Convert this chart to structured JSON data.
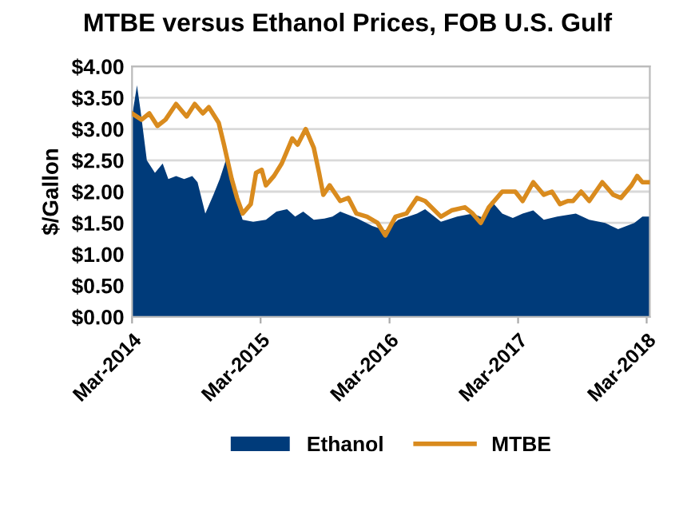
{
  "chart_data": {
    "type": "area",
    "title": "MTBE versus Ethanol Prices, FOB U.S. Gulf",
    "ylabel": "$/Gallon",
    "xlim": [
      "2014-03-01",
      "2018-03-10"
    ],
    "xticks": [
      {
        "value": "2014-03-01",
        "label": "Mar-2014"
      },
      {
        "value": "2015-03-01",
        "label": "Mar-2015"
      },
      {
        "value": "2016-03-01",
        "label": "Mar-2016"
      },
      {
        "value": "2017-03-01",
        "label": "Mar-2017"
      },
      {
        "value": "2018-03-01",
        "label": "Mar-2018"
      }
    ],
    "ylim": [
      0,
      4
    ],
    "yticks": [
      {
        "value": 0,
        "label": "$0.00"
      },
      {
        "value": 0.5,
        "label": "$0.50"
      },
      {
        "value": 1,
        "label": "$1.00"
      },
      {
        "value": 1.5,
        "label": "$1.50"
      },
      {
        "value": 2,
        "label": "$2.00"
      },
      {
        "value": 2.5,
        "label": "$2.50"
      },
      {
        "value": 3,
        "label": "$3.00"
      },
      {
        "value": 3.5,
        "label": "$3.50"
      },
      {
        "value": 4,
        "label": "$4.00"
      }
    ],
    "grid": "y",
    "legend": "bottom",
    "marker": "none",
    "line_style": "solid",
    "series": [
      {
        "name": "Ethanol",
        "color": "#003b7a",
        "x": [
          "2014-03-01",
          "2014-03-15",
          "2014-03-25",
          "2014-04-12",
          "2014-05-05",
          "2014-05-27",
          "2014-06-12",
          "2014-07-04",
          "2014-07-27",
          "2014-08-19",
          "2014-09-03",
          "2014-09-25",
          "2014-10-18",
          "2014-11-05",
          "2014-11-25",
          "2014-12-17",
          "2015-01-09",
          "2015-02-08",
          "2015-03-16",
          "2015-04-15",
          "2015-05-15",
          "2015-06-07",
          "2015-06-30",
          "2015-07-30",
          "2015-08-29",
          "2015-09-21",
          "2015-10-13",
          "2015-11-28",
          "2016-01-12",
          "2016-02-18",
          "2016-03-26",
          "2016-05-18",
          "2016-06-10",
          "2016-07-25",
          "2016-09-09",
          "2016-10-23",
          "2016-11-23",
          "2016-12-15",
          "2017-01-15",
          "2017-02-14",
          "2017-03-14",
          "2017-04-13",
          "2017-05-13",
          "2017-06-20",
          "2017-08-12",
          "2017-09-19",
          "2017-11-03",
          "2017-12-10",
          "2018-01-25",
          "2018-02-17",
          "2018-03-10"
        ],
        "values": [
          3.2,
          3.7,
          3.3,
          2.5,
          2.3,
          2.45,
          2.2,
          2.25,
          2.2,
          2.25,
          2.15,
          1.65,
          1.95,
          2.2,
          2.55,
          1.95,
          1.55,
          1.52,
          1.55,
          1.68,
          1.72,
          1.6,
          1.68,
          1.55,
          1.57,
          1.6,
          1.68,
          1.58,
          1.45,
          1.38,
          1.55,
          1.65,
          1.72,
          1.52,
          1.6,
          1.65,
          1.58,
          1.85,
          1.65,
          1.58,
          1.65,
          1.7,
          1.55,
          1.6,
          1.65,
          1.55,
          1.5,
          1.4,
          1.5,
          1.6,
          1.6
        ]
      },
      {
        "name": "MTBE",
        "type": "line",
        "color": "#d98b1e",
        "x": [
          "2014-03-01",
          "2014-03-28",
          "2014-04-19",
          "2014-05-12",
          "2014-06-04",
          "2014-07-04",
          "2014-08-03",
          "2014-08-26",
          "2014-09-18",
          "2014-10-05",
          "2014-11-02",
          "2014-11-17",
          "2014-12-09",
          "2014-12-24",
          "2015-01-09",
          "2015-02-01",
          "2015-02-16",
          "2015-03-04",
          "2015-03-16",
          "2015-04-08",
          "2015-04-30",
          "2015-05-30",
          "2015-06-14",
          "2015-07-07",
          "2015-07-30",
          "2015-08-14",
          "2015-08-26",
          "2015-09-13",
          "2015-10-13",
          "2015-11-05",
          "2015-11-28",
          "2015-12-28",
          "2016-01-27",
          "2016-02-18",
          "2016-03-18",
          "2016-04-18",
          "2016-05-18",
          "2016-06-10",
          "2016-07-25",
          "2016-08-24",
          "2016-10-01",
          "2016-10-23",
          "2016-11-15",
          "2016-12-08",
          "2017-01-15",
          "2017-02-21",
          "2017-03-14",
          "2017-04-13",
          "2017-05-13",
          "2017-06-05",
          "2017-06-28",
          "2017-07-20",
          "2017-08-04",
          "2017-08-27",
          "2017-09-19",
          "2017-10-26",
          "2017-11-26",
          "2017-12-18",
          "2018-01-17",
          "2018-02-02",
          "2018-02-17",
          "2018-03-10"
        ],
        "values": [
          3.25,
          3.15,
          3.25,
          3.05,
          3.15,
          3.4,
          3.2,
          3.4,
          3.25,
          3.35,
          3.1,
          2.75,
          2.2,
          1.9,
          1.65,
          1.8,
          2.3,
          2.35,
          2.1,
          2.25,
          2.45,
          2.85,
          2.75,
          3.0,
          2.7,
          2.3,
          1.95,
          2.1,
          1.85,
          1.9,
          1.65,
          1.6,
          1.5,
          1.3,
          1.6,
          1.65,
          1.9,
          1.85,
          1.6,
          1.7,
          1.75,
          1.65,
          1.5,
          1.75,
          2.0,
          2.0,
          1.85,
          2.15,
          1.95,
          2.0,
          1.8,
          1.85,
          1.85,
          2.0,
          1.85,
          2.15,
          1.95,
          1.9,
          2.1,
          2.25,
          2.15,
          2.15
        ]
      }
    ]
  }
}
